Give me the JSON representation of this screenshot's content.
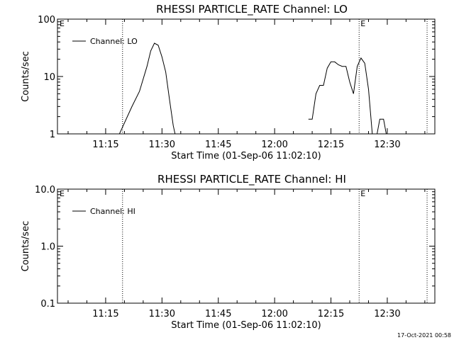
{
  "chart_data": [
    {
      "type": "line",
      "title": "RHESSI PARTICLE_RATE Channel: LO",
      "xlabel": "Start Time (01-Sep-06 11:02:10)",
      "ylabel": "Counts/sec",
      "y_scale": "log",
      "ylim": [
        1,
        100
      ],
      "y_ticks": [
        1,
        10,
        100
      ],
      "y_tick_labels": [
        "1",
        "10",
        "100"
      ],
      "x_range_minutes": [
        11.0,
        11.9
      ],
      "x_ticks": [
        "11:15",
        "11:30",
        "11:45",
        "12:00",
        "12:15",
        "12:30"
      ],
      "event_lines": [
        11.3,
        12.25,
        12.7
      ],
      "event_markers": [
        {
          "at": 11.0,
          "label": "E"
        },
        {
          "at": 12.25,
          "label": "E"
        }
      ],
      "legend": {
        "label": "Channel: LO",
        "placement": "top-left"
      },
      "series": [
        {
          "name": "Channel: LO",
          "segments": [
            [
              [
                "11:18",
                0.8
              ],
              [
                "11:22",
                3.0
              ],
              [
                "11:24",
                5.5
              ],
              [
                "11:26",
                15
              ],
              [
                "11:27",
                28
              ],
              [
                "11:28",
                38
              ],
              [
                "11:29",
                35
              ],
              [
                "11:30",
                22
              ],
              [
                "11:31",
                12
              ],
              [
                "11:32",
                4
              ],
              [
                "11:33",
                1.4
              ],
              [
                "11:34",
                0.7
              ]
            ],
            [
              [
                "12:09",
                1.8
              ],
              [
                "12:10",
                1.8
              ],
              [
                "12:11",
                5.0
              ],
              [
                "12:12",
                7.0
              ],
              [
                "12:13",
                7.0
              ],
              [
                "12:14",
                14
              ],
              [
                "12:15",
                18
              ],
              [
                "12:16",
                18
              ],
              [
                "12:17",
                16
              ],
              [
                "12:18",
                15
              ],
              [
                "12:19",
                15
              ],
              [
                "12:20",
                8.0
              ],
              [
                "12:21",
                5.0
              ],
              [
                "12:22",
                15
              ],
              [
                "12:23",
                21
              ],
              [
                "12:24",
                17
              ],
              [
                "12:25",
                6.0
              ],
              [
                "12:26",
                1.0
              ],
              [
                "12:27",
                0.8
              ],
              [
                "12:28",
                1.8
              ],
              [
                "12:29",
                1.8
              ],
              [
                "12:30",
                0.8
              ]
            ]
          ]
        }
      ]
    },
    {
      "type": "line",
      "title": "RHESSI PARTICLE_RATE Channel: HI",
      "xlabel": "Start Time (01-Sep-06 11:02:10)",
      "ylabel": "Counts/sec",
      "y_scale": "log",
      "ylim": [
        0.1,
        10
      ],
      "y_ticks": [
        0.1,
        1,
        10
      ],
      "y_tick_labels": [
        "0.1",
        "1.0",
        "10.0"
      ],
      "x_ticks": [
        "11:15",
        "11:30",
        "11:45",
        "12:00",
        "12:15",
        "12:30"
      ],
      "event_lines": [
        11.3,
        12.25,
        12.7
      ],
      "event_markers": [
        {
          "at": 11.0,
          "label": "E"
        },
        {
          "at": 12.25,
          "label": "E"
        }
      ],
      "legend": {
        "label": "Channel: HI",
        "placement": "top-left"
      },
      "series": [
        {
          "name": "Channel: HI",
          "segments": []
        }
      ]
    }
  ],
  "footer": {
    "timestamp": "17-Oct-2021 00:58"
  }
}
